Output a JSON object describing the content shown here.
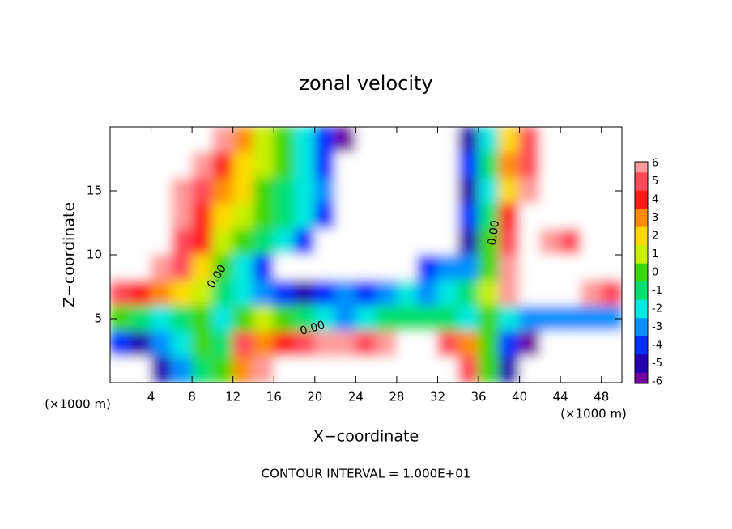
{
  "chart_data": {
    "type": "contour",
    "title": "zonal velocity",
    "xlabel": "X−coordinate",
    "ylabel": "Z−coordinate",
    "xunit": "(×1000 m)",
    "yunit": "(×1000 m)",
    "footer": "CONTOUR INTERVAL = 1.000E+01",
    "annotations": [
      "0.00",
      "0.00",
      "0.00"
    ],
    "xlim": [
      0,
      50
    ],
    "ylim": [
      0,
      20
    ],
    "xticks": [
      4,
      8,
      12,
      16,
      20,
      24,
      28,
      32,
      36,
      40,
      44,
      48
    ],
    "yticks": [
      5,
      10,
      15
    ],
    "x": [
      1,
      3,
      5,
      7,
      9,
      11,
      13,
      15,
      17,
      19,
      21,
      23,
      25,
      27,
      29,
      31,
      33,
      35,
      37,
      39,
      41,
      43,
      45,
      47,
      49
    ],
    "z": [
      19,
      17,
      15,
      13,
      11,
      9,
      7,
      5,
      3,
      1
    ],
    "values": [
      [
        10,
        10,
        10,
        10,
        10,
        6,
        3,
        1,
        0,
        -2,
        -4,
        -6,
        -8,
        -8,
        -8,
        -8,
        -8,
        -5,
        -2,
        2,
        5,
        8,
        8,
        8,
        8
      ],
      [
        8,
        8,
        8,
        8,
        6,
        4,
        2,
        1,
        0,
        -2,
        -4,
        -7,
        -9,
        -9,
        -9,
        -9,
        -9,
        -4,
        -1,
        3,
        5,
        8,
        8,
        8,
        8
      ],
      [
        8,
        8,
        8,
        6,
        5,
        3,
        2,
        0,
        -1,
        -2,
        -3,
        -7,
        -9,
        -9,
        -9,
        -9,
        -9,
        -5,
        -2,
        2,
        6,
        8,
        8,
        8,
        8
      ],
      [
        8,
        8,
        8,
        6,
        4,
        2,
        1,
        0,
        -1,
        -2,
        -4,
        -8,
        -8,
        -8,
        -8,
        -8,
        -8,
        -4,
        -1,
        4,
        8,
        8,
        8,
        8,
        8
      ],
      [
        8,
        8,
        8,
        5,
        4,
        1,
        0,
        -1,
        -2,
        -4,
        -8,
        -8,
        -8,
        -8,
        -8,
        -8,
        -8,
        -5,
        0,
        5,
        8,
        6,
        5,
        8,
        8
      ],
      [
        8,
        7,
        6,
        5,
        2,
        0,
        -2,
        -4,
        -7,
        -8,
        -8,
        -8,
        -8,
        -8,
        -8,
        -4,
        -3,
        -3,
        0,
        6,
        8,
        8,
        8,
        8,
        8
      ],
      [
        5,
        4,
        3,
        2,
        1,
        -1,
        -2,
        -3,
        -4,
        -5,
        -4,
        -3,
        -4,
        -3,
        -2,
        -3,
        -2,
        -1,
        1,
        6,
        8,
        8,
        8,
        6,
        5
      ],
      [
        0,
        -1,
        -2,
        -1,
        0,
        -2,
        0,
        1,
        0,
        -1,
        -2,
        -3,
        -2,
        -1,
        -1,
        -1,
        -1,
        -2,
        0,
        -2,
        -3,
        -3,
        -3,
        -3,
        -3
      ],
      [
        -4,
        -5,
        -3,
        -2,
        0,
        -1,
        5,
        3,
        4,
        5,
        6,
        6,
        5,
        6,
        8,
        8,
        5,
        3,
        0,
        -4,
        -6,
        -8,
        -8,
        -8,
        -8
      ],
      [
        -8,
        -8,
        -5,
        -3,
        -1,
        0,
        3,
        6,
        8,
        8,
        8,
        8,
        8,
        8,
        8,
        8,
        8,
        5,
        0,
        -5,
        -8,
        -8,
        -8,
        -8,
        -8
      ]
    ],
    "colorscale": {
      "levels": [
        6,
        5,
        4,
        3,
        2,
        1,
        0,
        -1,
        -2,
        -3,
        -4,
        -5,
        -6
      ],
      "colors": [
        "#ff9a9a",
        "#ff4a5a",
        "#ff1a1a",
        "#ff8c00",
        "#ffd800",
        "#c8f000",
        "#3cd800",
        "#00e070",
        "#00e8e0",
        "#0090ff",
        "#0030ff",
        "#2000b0",
        "#7000a0"
      ]
    }
  }
}
